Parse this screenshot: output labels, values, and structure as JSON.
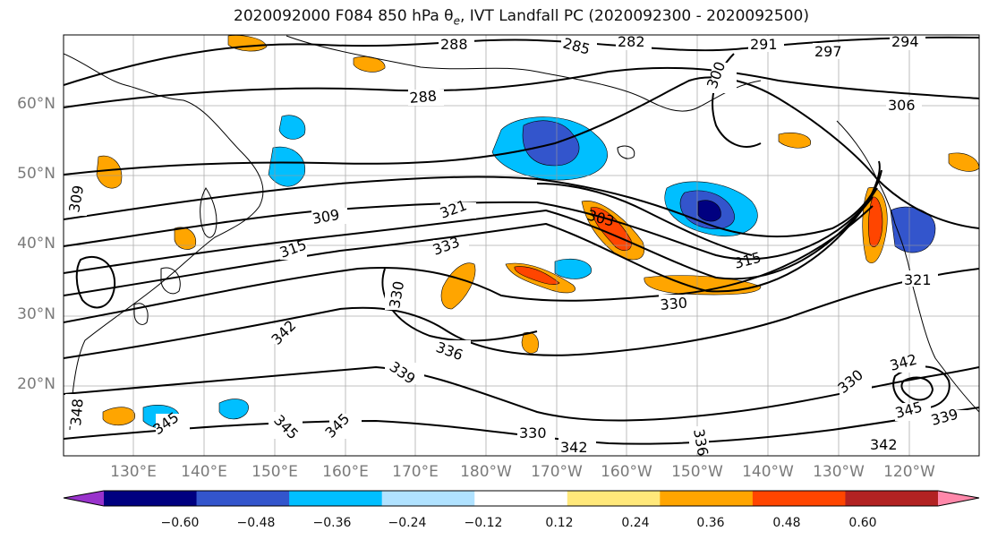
{
  "title": "2020092000 F084 850 hPa θ",
  "title_sub": "e",
  "title_rest": ", IVT Landfall PC (2020092300 - 2020092500)",
  "lat_labels": [
    "60°N",
    "50°N",
    "40°N",
    "30°N",
    "20°N"
  ],
  "lon_labels": [
    "130°E",
    "140°E",
    "150°E",
    "160°E",
    "170°E",
    "180°W",
    "170°W",
    "160°W",
    "150°W",
    "140°W",
    "130°W",
    "120°W"
  ],
  "colorbar": {
    "ticks": [
      "−0.60",
      "−0.48",
      "−0.36",
      "−0.24",
      "−0.12",
      "0.12",
      "0.24",
      "0.36",
      "0.48",
      "0.60"
    ],
    "colors": [
      "#9933cc",
      "#000080",
      "#3355cc",
      "#00bfff",
      "#b0e2ff",
      "#ffffff",
      "#ffe87a",
      "#ffa500",
      "#ff4500",
      "#b22222",
      "#ff88aa"
    ]
  },
  "contour_labels": [
    "288",
    "285",
    "282",
    "291",
    "294",
    "297",
    "300",
    "288",
    "306",
    "309",
    "309",
    "321",
    "315",
    "303",
    "333",
    "315",
    "330",
    "330",
    "342",
    "336",
    "339",
    "321",
    "342",
    "330",
    "345",
    "339",
    "345",
    "345",
    "345",
    "348",
    "330",
    "342",
    "342",
    "336"
  ]
}
